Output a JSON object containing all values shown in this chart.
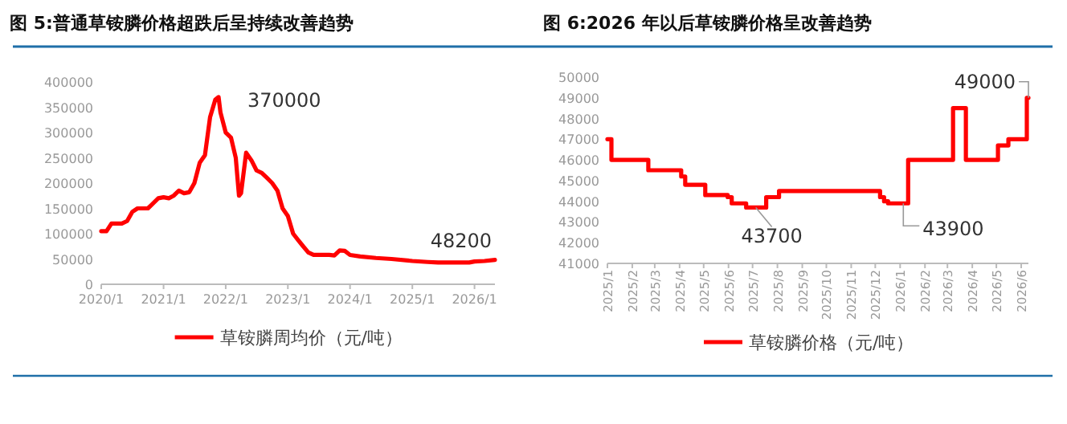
{
  "chart_data": [
    {
      "type": "line",
      "title": "图 5:普通草铵膦价格超跌后呈持续改善趋势",
      "x": [
        "2020-01",
        "2020-02",
        "2020-03",
        "2020-05",
        "2020-06",
        "2020-07",
        "2020-08",
        "2020-10",
        "2020-11",
        "2020-12",
        "2021-01",
        "2021-02",
        "2021-03",
        "2021-04",
        "2021-05",
        "2021-06",
        "2021-07",
        "2021-08",
        "2021-09",
        "2021-10",
        "2021-11",
        "2021-11-20",
        "2021-12",
        "2022-01",
        "2022-02",
        "2022-03",
        "2022-03-20",
        "2022-04",
        "2022-05",
        "2022-06",
        "2022-07",
        "2022-08",
        "2022-09",
        "2022-10",
        "2022-11",
        "2022-12",
        "2023-01",
        "2023-02",
        "2023-03",
        "2023-04",
        "2023-05",
        "2023-06",
        "2023-09",
        "2023-10",
        "2023-11",
        "2023-12",
        "2024-01",
        "2024-03",
        "2024-06",
        "2024-09",
        "2025-01",
        "2025-04",
        "2025-06",
        "2025-09",
        "2025-12",
        "2026-01",
        "2026-03",
        "2026-05"
      ],
      "series": [
        {
          "name": "草铵膦周均价（元/吨）",
          "color": "#ff0000",
          "values": [
            105000,
            105000,
            120000,
            120000,
            125000,
            143000,
            150000,
            150000,
            160000,
            170000,
            172000,
            170000,
            175000,
            185000,
            180000,
            182000,
            200000,
            240000,
            255000,
            330000,
            365000,
            370000,
            340000,
            300000,
            290000,
            250000,
            175000,
            180000,
            260000,
            245000,
            225000,
            220000,
            210000,
            200000,
            185000,
            150000,
            135000,
            100000,
            88000,
            75000,
            63000,
            58000,
            58000,
            57000,
            67000,
            66000,
            58000,
            55000,
            52000,
            50000,
            46000,
            44000,
            43000,
            43000,
            43000,
            45000,
            46000,
            48200
          ]
        }
      ],
      "xlim": [
        "2020-01",
        "2026-05"
      ],
      "xticks": [
        {
          "value": "2020-01",
          "label": "2020/1"
        },
        {
          "value": "2021-01",
          "label": "2021/1"
        },
        {
          "value": "2022-01",
          "label": "2022/1"
        },
        {
          "value": "2023-01",
          "label": "2023/1"
        },
        {
          "value": "2024-01",
          "label": "2024/1"
        },
        {
          "value": "2025-01",
          "label": "2025/1"
        },
        {
          "value": "2026-01",
          "label": "2026/1"
        }
      ],
      "ylim": [
        0,
        400000
      ],
      "yticks": [
        0,
        50000,
        100000,
        150000,
        200000,
        250000,
        300000,
        350000,
        400000
      ],
      "legend": "bottom",
      "annotations": [
        {
          "text": "370000",
          "x": "2021-11-20",
          "y": 370000
        },
        {
          "text": "48200",
          "x": "2026-05",
          "y": 48200
        }
      ]
    },
    {
      "type": "step",
      "title": "图 6:2026 年以后草铵膦价格呈改善趋势",
      "x": [
        "2025-01-01",
        "2025-01-06",
        "2025-02-21",
        "2025-04-03",
        "2025-04-08",
        "2025-04-12",
        "2025-05-03",
        "2025-05-31",
        "2025-06-05",
        "2025-06-10",
        "2025-06-23",
        "2025-07-18",
        "2025-08-03",
        "2025-12-07",
        "2025-12-12",
        "2025-12-17",
        "2026-01-11",
        "2026-03-08",
        "2026-03-24",
        "2026-05-03",
        "2026-05-16",
        "2026-06-08",
        "2026-06-10"
      ],
      "series": [
        {
          "name": "草铵膦价格（元/吨）",
          "color": "#ff0000",
          "values": [
            47000,
            46000,
            45500,
            45200,
            44800,
            44800,
            44300,
            44200,
            43900,
            43900,
            43700,
            44200,
            44500,
            44200,
            44000,
            43900,
            46000,
            48500,
            46000,
            46700,
            47000,
            49000,
            49000
          ]
        }
      ],
      "xlim": [
        "2025-01-01",
        "2026-06-10"
      ],
      "xticks": [
        {
          "value": "2025-01-01",
          "label": "2025/1"
        },
        {
          "value": "2025-02-01",
          "label": "2025/2"
        },
        {
          "value": "2025-03-01",
          "label": "2025/3"
        },
        {
          "value": "2025-04-01",
          "label": "2025/4"
        },
        {
          "value": "2025-05-01",
          "label": "2025/5"
        },
        {
          "value": "2025-06-01",
          "label": "2025/6"
        },
        {
          "value": "2025-07-01",
          "label": "2025/7"
        },
        {
          "value": "2025-08-01",
          "label": "2025/8"
        },
        {
          "value": "2025-09-01",
          "label": "2025/9"
        },
        {
          "value": "2025-10-01",
          "label": "2025/10"
        },
        {
          "value": "2025-11-01",
          "label": "2025/11"
        },
        {
          "value": "2025-12-01",
          "label": "2025/12"
        },
        {
          "value": "2026-01-01",
          "label": "2026/1"
        },
        {
          "value": "2026-02-01",
          "label": "2026/2"
        },
        {
          "value": "2026-03-01",
          "label": "2026/3"
        },
        {
          "value": "2026-04-01",
          "label": "2026/4"
        },
        {
          "value": "2026-05-01",
          "label": "2026/5"
        },
        {
          "value": "2026-06-01",
          "label": "2026/6"
        }
      ],
      "ylim": [
        41000,
        50000
      ],
      "yticks": [
        41000,
        42000,
        43000,
        44000,
        45000,
        46000,
        47000,
        48000,
        49000,
        50000
      ],
      "legend": "bottom",
      "annotations": [
        {
          "text": "43700",
          "x": "2025-07-05",
          "y": 43700
        },
        {
          "text": "43900",
          "x": "2026-01-05",
          "y": 43900
        },
        {
          "text": "49000",
          "x": "2026-06-10",
          "y": 49000
        }
      ]
    }
  ]
}
